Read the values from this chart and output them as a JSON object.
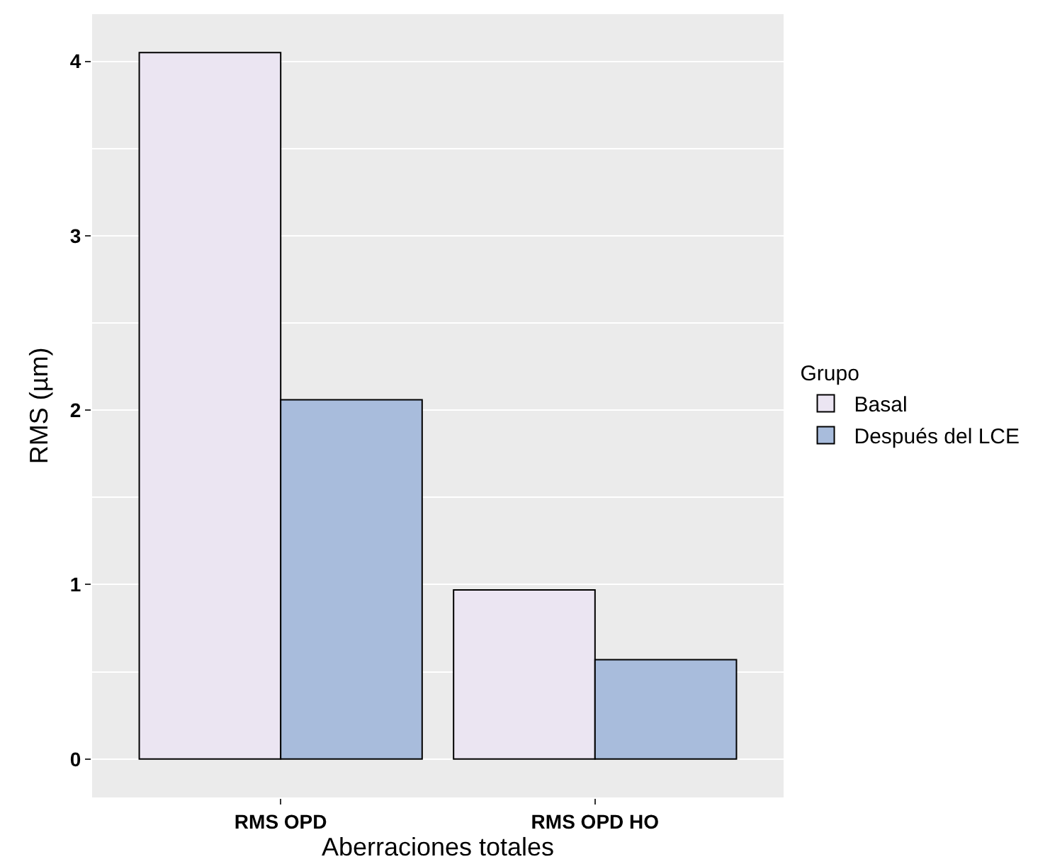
{
  "chart_data": {
    "type": "bar",
    "xlabel": "Aberraciones totales",
    "ylabel": "RMS (µm)",
    "legend_title": "Grupo",
    "categories": [
      "RMS OPD",
      "RMS OPD HO"
    ],
    "series": [
      {
        "name": "Basal",
        "color": "#ebe5f2",
        "values": [
          4.05,
          0.97
        ]
      },
      {
        "name": "Después del LCE",
        "color": "#a8bcdc",
        "values": [
          2.06,
          0.57
        ]
      }
    ],
    "ylim": [
      -0.22,
      4.27
    ],
    "yticks": [
      0,
      1,
      2,
      3,
      4
    ],
    "grid": "y",
    "legend": "right"
  }
}
